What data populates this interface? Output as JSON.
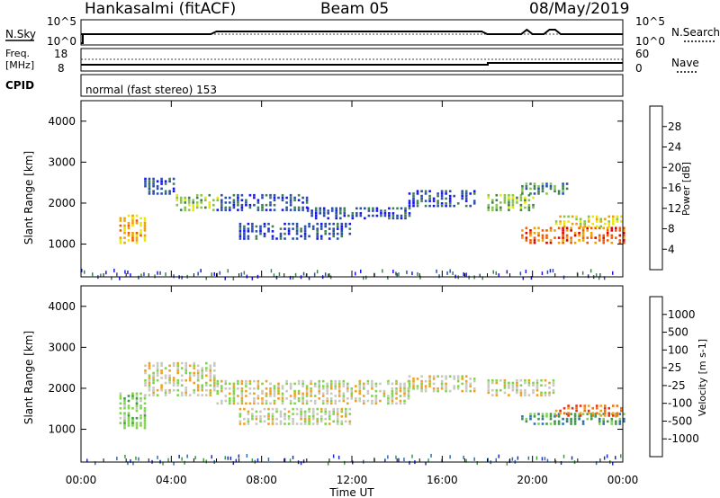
{
  "header": {
    "radar": "Hankasalmi (fitACF)",
    "beam": "Beam 05",
    "date": "08/May/2019"
  },
  "strip": {
    "nsky_label": "N.Sky",
    "nsky_ticks": [
      "10^5",
      "10^0"
    ],
    "nsearch_label": "N.Search",
    "nsearch_ticks": [
      "10^5",
      "10^0"
    ],
    "freq_label_1": "Freq.",
    "freq_label_2": "[MHz]",
    "freq_ticks": [
      "18",
      "8"
    ],
    "nave_label": "Nave",
    "nave_ticks": [
      "60",
      "0"
    ],
    "cpid_label": "CPID",
    "cpid_text": "normal (fast stereo) 153"
  },
  "chart_data": [
    {
      "type": "heatmap",
      "panel": "power",
      "ylabel": "Slant Range [km]",
      "xlabel": "",
      "ylim": [
        200,
        4500
      ],
      "yticks": [
        1000,
        2000,
        3000,
        4000
      ],
      "xlim": [
        0,
        24
      ],
      "colorbar": {
        "label": "Power [dB]",
        "ticks": [
          4,
          8,
          12,
          16,
          20,
          24,
          28
        ],
        "colors": [
          "#1a14f0",
          "#2a4fa8",
          "#3f8050",
          "#86c24e",
          "#e8e800",
          "#f0a000",
          "#f05a00",
          "#e00000"
        ]
      },
      "echo_bands": [
        {
          "t0": 1.7,
          "t1": 2.8,
          "r0": 1000,
          "r1": 1700,
          "level": 5
        },
        {
          "t0": 2.8,
          "t1": 4.2,
          "r0": 2200,
          "r1": 2600,
          "level": 1
        },
        {
          "t0": 4.2,
          "t1": 6.0,
          "r0": 1800,
          "r1": 2200,
          "level": 3
        },
        {
          "t0": 6.0,
          "t1": 10.0,
          "r0": 1800,
          "r1": 2200,
          "level": 1
        },
        {
          "t0": 10.0,
          "t1": 14.5,
          "r0": 1600,
          "r1": 1900,
          "level": 1
        },
        {
          "t0": 14.5,
          "t1": 17.5,
          "r0": 1900,
          "r1": 2300,
          "level": 1
        },
        {
          "t0": 7.0,
          "t1": 12.0,
          "r0": 1100,
          "r1": 1500,
          "level": 1
        },
        {
          "t0": 18.0,
          "t1": 20.0,
          "r0": 1800,
          "r1": 2200,
          "level": 3
        },
        {
          "t0": 19.5,
          "t1": 21.5,
          "r0": 2200,
          "r1": 2500,
          "level": 2
        },
        {
          "t0": 19.5,
          "t1": 24.0,
          "r0": 1000,
          "r1": 1400,
          "level": 6
        },
        {
          "t0": 21.0,
          "t1": 24.0,
          "r0": 1400,
          "r1": 1700,
          "level": 4
        }
      ]
    },
    {
      "type": "heatmap",
      "panel": "velocity",
      "ylabel": "Slant Range [km]",
      "xlabel": "Time UT",
      "ylim": [
        200,
        4500
      ],
      "yticks": [
        1000,
        2000,
        3000,
        4000
      ],
      "xlim": [
        0,
        24
      ],
      "xticks": [
        "00:00",
        "04:00",
        "08:00",
        "12:00",
        "16:00",
        "20:00",
        "00:00"
      ],
      "colorbar": {
        "label": "Velocity [m s-1]",
        "ticks": [
          1000,
          500,
          100,
          25,
          -25,
          -100,
          -500,
          -1000
        ],
        "colors": [
          "#1a2cc8",
          "#2f6fb0",
          "#3a9a4a",
          "#7ed44a",
          "#c8c8c0",
          "#f0a020",
          "#f07010",
          "#e83010",
          "#e00000"
        ]
      },
      "echo_bands": [
        {
          "t0": 1.7,
          "t1": 2.8,
          "r0": 1000,
          "r1": 1900,
          "level": 3
        },
        {
          "t0": 2.8,
          "t1": 6.0,
          "r0": 1800,
          "r1": 2600,
          "level": 4
        },
        {
          "t0": 6.0,
          "t1": 14.5,
          "r0": 1600,
          "r1": 2200,
          "level": 4
        },
        {
          "t0": 14.5,
          "t1": 17.5,
          "r0": 1900,
          "r1": 2300,
          "level": 4
        },
        {
          "t0": 7.0,
          "t1": 12.0,
          "r0": 1100,
          "r1": 1500,
          "level": 4
        },
        {
          "t0": 18.0,
          "t1": 21.0,
          "r0": 1800,
          "r1": 2200,
          "level": 4
        },
        {
          "t0": 19.5,
          "t1": 24.0,
          "r0": 1100,
          "r1": 1400,
          "level": 2
        },
        {
          "t0": 21.0,
          "t1": 24.0,
          "r0": 1300,
          "r1": 1600,
          "level": 6
        }
      ]
    }
  ]
}
